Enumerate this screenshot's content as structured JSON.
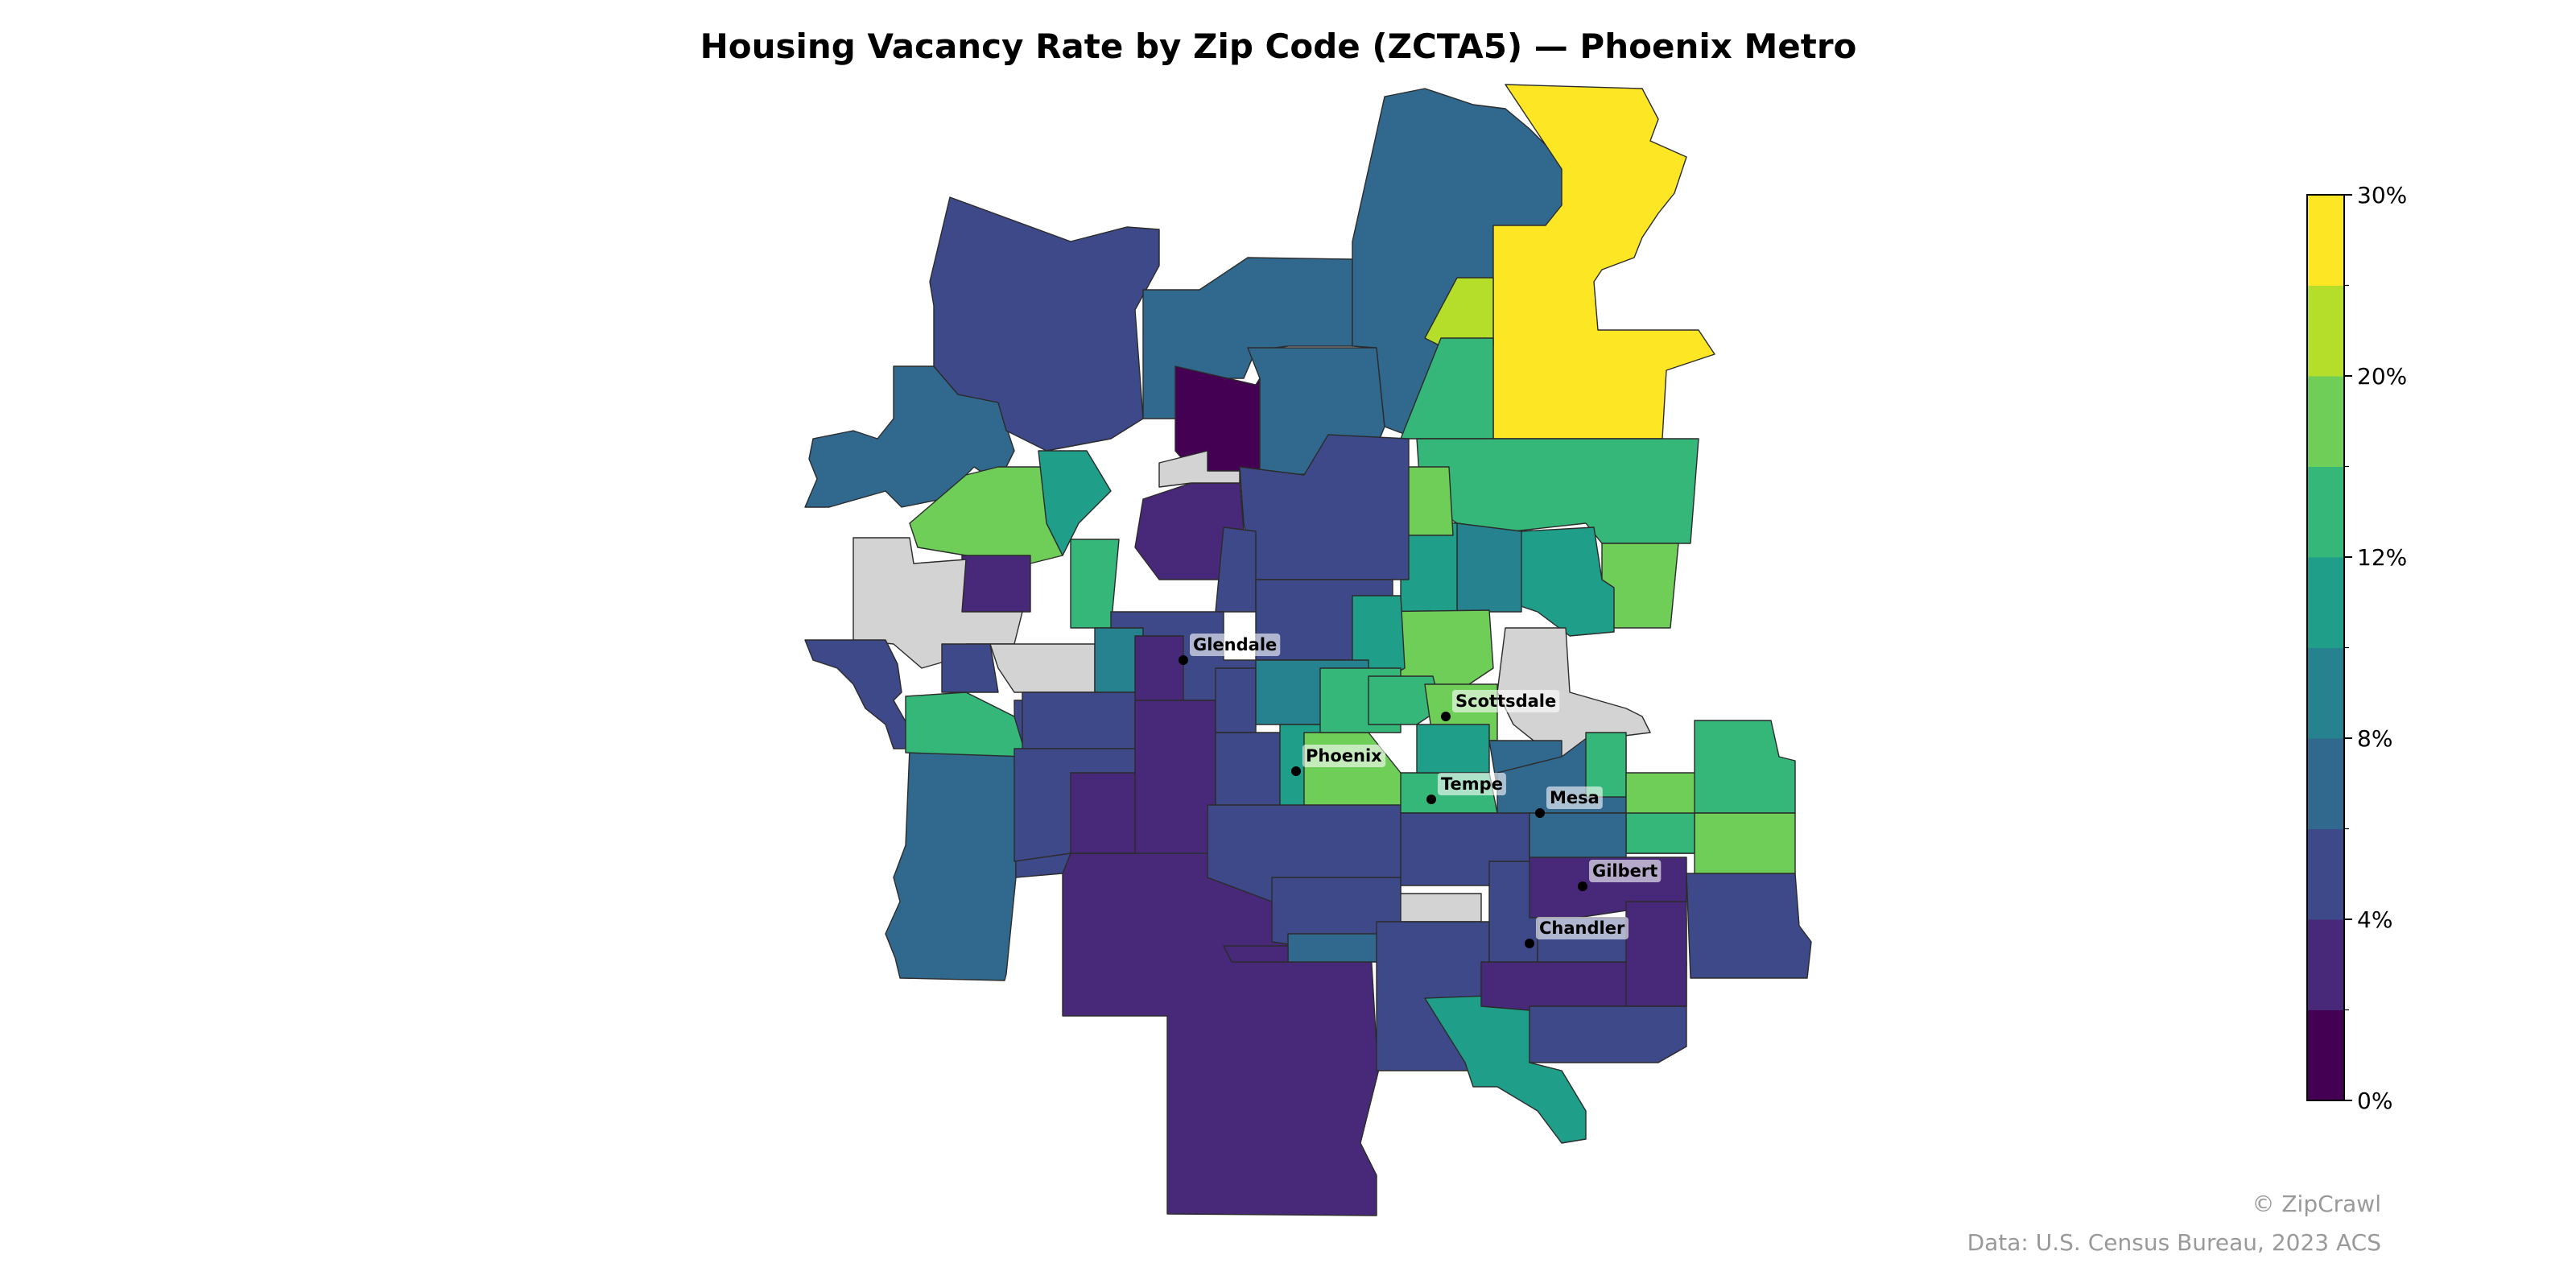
{
  "title": "Housing Vacancy Rate by Zip Code (ZCTA5) — Phoenix Metro",
  "colormap": {
    "name": "viridis",
    "unit": "%",
    "range": [
      0,
      30
    ],
    "bins": [
      {
        "from": 0,
        "to": 2.5,
        "color": "#440154"
      },
      {
        "from": 2.5,
        "to": 5,
        "color": "#482878"
      },
      {
        "from": 5,
        "to": 7.5,
        "color": "#3e4989"
      },
      {
        "from": 7.5,
        "to": 10,
        "color": "#31688e"
      },
      {
        "from": 10,
        "to": 12.5,
        "color": "#26828e"
      },
      {
        "from": 12.5,
        "to": 15,
        "color": "#1f9e89"
      },
      {
        "from": 15,
        "to": 17.5,
        "color": "#35b779"
      },
      {
        "from": 17.5,
        "to": 20,
        "color": "#6ece58"
      },
      {
        "from": 20,
        "to": 22.5,
        "color": "#b5de2b"
      },
      {
        "from": 22.5,
        "to": 30,
        "color": "#fde725"
      }
    ],
    "no_data_color": "#d3d3d3",
    "ticks": [
      "0%",
      "4%",
      "8%",
      "12%",
      "20%",
      "30%"
    ]
  },
  "cities": [
    {
      "name": "Glendale"
    },
    {
      "name": "Scottsdale"
    },
    {
      "name": "Phoenix"
    },
    {
      "name": "Tempe"
    },
    {
      "name": "Mesa"
    },
    {
      "name": "Gilbert"
    },
    {
      "name": "Chandler"
    }
  ],
  "credits": {
    "brand": "© ZipCrawl",
    "source": "Data: U.S. Census Bureau, 2023 ACS"
  }
}
